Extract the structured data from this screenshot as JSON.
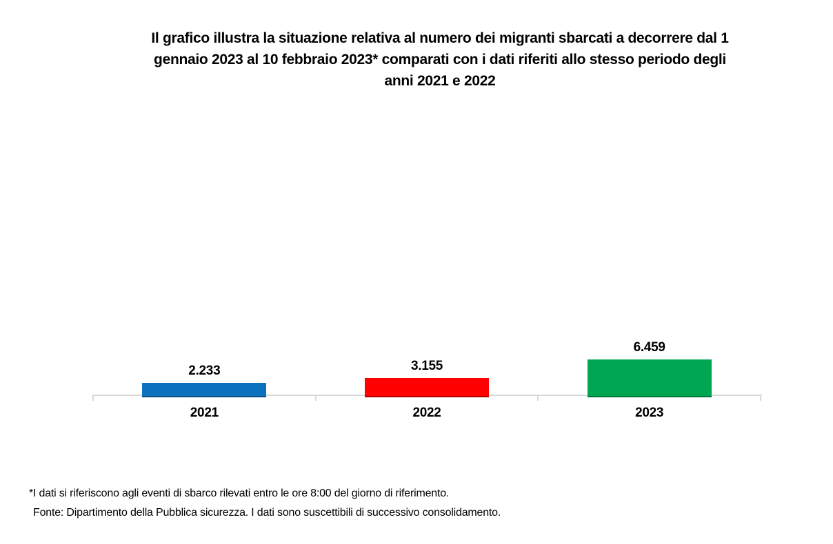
{
  "title_lines": [
    "Il grafico illustra la situazione relativa al numero dei migranti sbarcati a decorrere dal 1",
    "gennaio 2023 al 10 febbraio 2023* comparati con i dati riferiti allo stesso periodo degli",
    "anni 2021 e 2022"
  ],
  "chart_data": {
    "type": "bar",
    "title": "Il grafico illustra la situazione relativa al numero dei migranti sbarcati a decorrere dal 1 gennaio 2023 al 10 febbraio 2023* comparati con i dati riferiti allo stesso periodo degli anni 2021 e 2022",
    "categories": [
      "2021",
      "2022",
      "2023"
    ],
    "values": [
      2233,
      3155,
      6459
    ],
    "value_labels": [
      "2.233",
      "3.155",
      "6.459"
    ],
    "colors": [
      "#0d72bd",
      "#ff0000",
      "#00a651"
    ],
    "axis_line_color": "#d9d9d9",
    "xlabel": "",
    "ylabel": "",
    "ylim": [
      0,
      6459
    ],
    "grid": false,
    "legend": false,
    "data_labels_position": "above-bar"
  },
  "footnotes": [
    "*I dati si riferiscono agli eventi di sbarco rilevati entro le ore 8:00 del giorno di riferimento.",
    "Fonte: Dipartimento della Pubblica sicurezza. I dati sono suscettibili di successivo consolidamento."
  ]
}
